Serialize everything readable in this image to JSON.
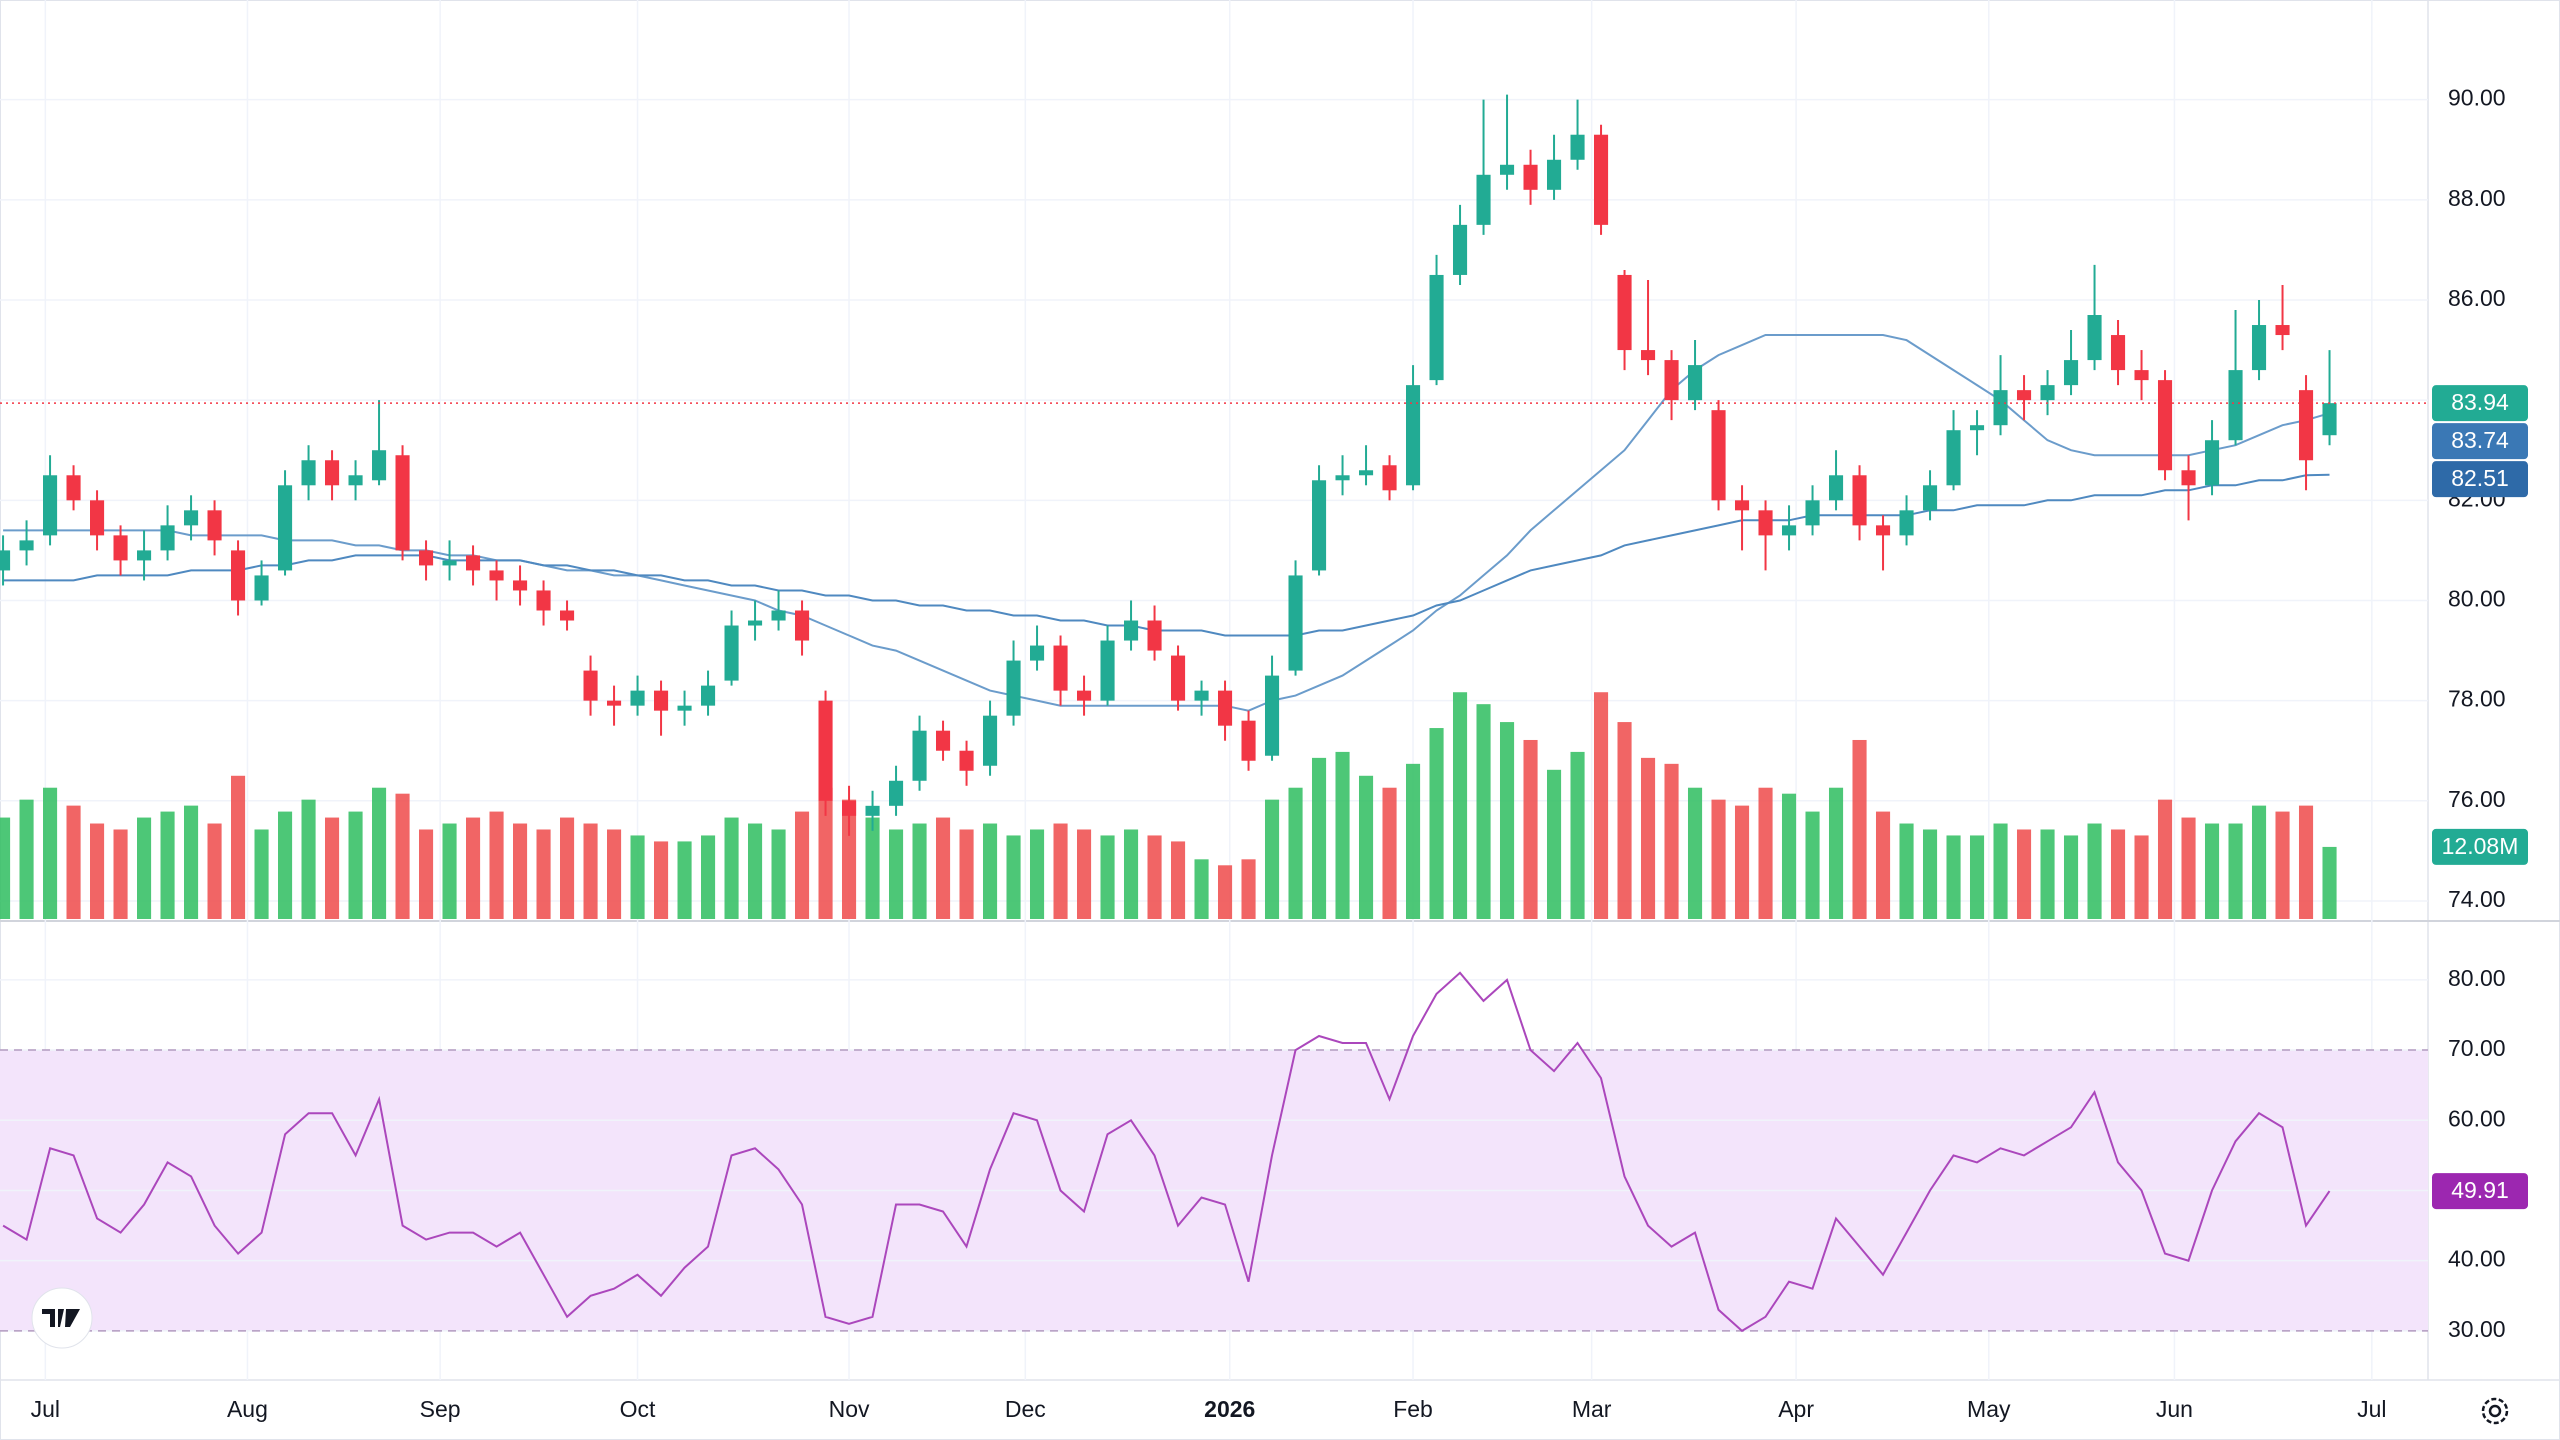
{
  "chart_data": [
    {
      "type": "candlestick",
      "up_color": "#22ab94",
      "down_color": "#f23645",
      "ylim": [
        73.64,
        91.99
      ],
      "yticks": [
        {
          "value": 74,
          "label": "74.00"
        },
        {
          "value": 76,
          "label": "76.00"
        },
        {
          "value": 78,
          "label": "78.00"
        },
        {
          "value": 80,
          "label": "80.00"
        },
        {
          "value": 82,
          "label": "82.00"
        },
        {
          "value": 84,
          "label": "84.00"
        },
        {
          "value": 86,
          "label": "86.00"
        },
        {
          "value": 88,
          "label": "88.00"
        },
        {
          "value": 90,
          "label": "90.00"
        }
      ],
      "grid": true,
      "candles": [
        [
          80.6,
          81.3,
          80.3,
          81.0
        ],
        [
          81.0,
          81.6,
          80.7,
          81.2
        ],
        [
          81.3,
          82.9,
          81.1,
          82.5
        ],
        [
          82.5,
          82.7,
          81.8,
          82.0
        ],
        [
          82.0,
          82.2,
          81.0,
          81.3
        ],
        [
          81.3,
          81.5,
          80.5,
          80.8
        ],
        [
          80.8,
          81.4,
          80.4,
          81.0
        ],
        [
          81.0,
          81.9,
          80.8,
          81.5
        ],
        [
          81.5,
          82.1,
          81.2,
          81.8
        ],
        [
          81.8,
          82.0,
          80.9,
          81.2
        ],
        [
          81.0,
          81.2,
          79.7,
          80.0
        ],
        [
          80.0,
          80.8,
          79.9,
          80.5
        ],
        [
          80.6,
          82.6,
          80.5,
          82.3
        ],
        [
          82.3,
          83.1,
          82.0,
          82.8
        ],
        [
          82.8,
          83.0,
          82.0,
          82.3
        ],
        [
          82.3,
          82.8,
          82.0,
          82.5
        ],
        [
          82.4,
          84.0,
          82.3,
          83.0
        ],
        [
          82.9,
          83.1,
          80.8,
          81.0
        ],
        [
          81.0,
          81.2,
          80.4,
          80.7
        ],
        [
          80.7,
          81.2,
          80.4,
          80.8
        ],
        [
          80.9,
          81.1,
          80.3,
          80.6
        ],
        [
          80.6,
          80.8,
          80.0,
          80.4
        ],
        [
          80.4,
          80.7,
          79.9,
          80.2
        ],
        [
          80.2,
          80.4,
          79.5,
          79.8
        ],
        [
          79.8,
          80.0,
          79.4,
          79.6
        ],
        [
          78.6,
          78.9,
          77.7,
          78.0
        ],
        [
          78.0,
          78.3,
          77.5,
          77.9
        ],
        [
          77.9,
          78.5,
          77.7,
          78.2
        ],
        [
          78.2,
          78.4,
          77.3,
          77.8
        ],
        [
          77.8,
          78.2,
          77.5,
          77.9
        ],
        [
          77.9,
          78.6,
          77.7,
          78.3
        ],
        [
          78.4,
          79.8,
          78.3,
          79.5
        ],
        [
          79.5,
          80.0,
          79.2,
          79.6
        ],
        [
          79.6,
          80.2,
          79.4,
          79.8
        ],
        [
          79.8,
          80.0,
          78.9,
          79.2
        ],
        [
          78.0,
          78.2,
          75.7,
          76.0
        ],
        [
          76.0,
          76.3,
          75.3,
          75.7
        ],
        [
          75.7,
          76.2,
          75.4,
          75.9
        ],
        [
          75.9,
          76.7,
          75.7,
          76.4
        ],
        [
          76.4,
          77.7,
          76.2,
          77.4
        ],
        [
          77.4,
          77.6,
          76.8,
          77.0
        ],
        [
          77.0,
          77.2,
          76.3,
          76.6
        ],
        [
          76.7,
          78.0,
          76.5,
          77.7
        ],
        [
          77.7,
          79.2,
          77.5,
          78.8
        ],
        [
          78.8,
          79.5,
          78.6,
          79.1
        ],
        [
          79.1,
          79.3,
          77.9,
          78.2
        ],
        [
          78.2,
          78.5,
          77.7,
          78.0
        ],
        [
          78.0,
          79.5,
          77.9,
          79.2
        ],
        [
          79.2,
          80.0,
          79.0,
          79.6
        ],
        [
          79.6,
          79.9,
          78.8,
          79.0
        ],
        [
          78.9,
          79.1,
          77.8,
          78.0
        ],
        [
          78.0,
          78.4,
          77.7,
          78.2
        ],
        [
          78.2,
          78.4,
          77.2,
          77.5
        ],
        [
          77.6,
          77.8,
          76.6,
          76.8
        ],
        [
          76.9,
          78.9,
          76.8,
          78.5
        ],
        [
          78.6,
          80.8,
          78.5,
          80.5
        ],
        [
          80.6,
          82.7,
          80.5,
          82.4
        ],
        [
          82.4,
          82.9,
          82.1,
          82.5
        ],
        [
          82.5,
          83.1,
          82.3,
          82.6
        ],
        [
          82.7,
          82.9,
          82.0,
          82.2
        ],
        [
          82.3,
          84.7,
          82.2,
          84.3
        ],
        [
          84.4,
          86.9,
          84.3,
          86.5
        ],
        [
          86.5,
          87.9,
          86.3,
          87.5
        ],
        [
          87.5,
          90.0,
          87.3,
          88.5
        ],
        [
          88.5,
          90.1,
          88.2,
          88.7
        ],
        [
          88.7,
          89.0,
          87.9,
          88.2
        ],
        [
          88.2,
          89.3,
          88.0,
          88.8
        ],
        [
          88.8,
          90.0,
          88.6,
          89.3
        ],
        [
          89.3,
          89.5,
          87.3,
          87.5
        ],
        [
          86.5,
          86.6,
          84.6,
          85.0
        ],
        [
          85.0,
          86.4,
          84.5,
          84.8
        ],
        [
          84.8,
          85.0,
          83.6,
          84.0
        ],
        [
          84.0,
          85.2,
          83.8,
          84.7
        ],
        [
          83.8,
          84.0,
          81.8,
          82.0
        ],
        [
          82.0,
          82.3,
          81.0,
          81.8
        ],
        [
          81.8,
          82.0,
          80.6,
          81.3
        ],
        [
          81.3,
          81.9,
          81.0,
          81.5
        ],
        [
          81.5,
          82.3,
          81.3,
          82.0
        ],
        [
          82.0,
          83.0,
          81.8,
          82.5
        ],
        [
          82.5,
          82.7,
          81.2,
          81.5
        ],
        [
          81.5,
          81.7,
          80.6,
          81.3
        ],
        [
          81.3,
          82.1,
          81.1,
          81.8
        ],
        [
          81.8,
          82.6,
          81.6,
          82.3
        ],
        [
          82.3,
          83.8,
          82.2,
          83.4
        ],
        [
          83.4,
          83.8,
          82.9,
          83.5
        ],
        [
          83.5,
          84.9,
          83.3,
          84.2
        ],
        [
          84.2,
          84.5,
          83.6,
          84.0
        ],
        [
          84.0,
          84.6,
          83.7,
          84.3
        ],
        [
          84.3,
          85.4,
          84.1,
          84.8
        ],
        [
          84.8,
          86.7,
          84.6,
          85.7
        ],
        [
          85.3,
          85.6,
          84.3,
          84.6
        ],
        [
          84.6,
          85.0,
          84.0,
          84.4
        ],
        [
          84.4,
          84.6,
          82.4,
          82.6
        ],
        [
          82.6,
          82.9,
          81.6,
          82.3
        ],
        [
          82.3,
          83.6,
          82.1,
          83.2
        ],
        [
          83.2,
          85.8,
          83.1,
          84.6
        ],
        [
          84.6,
          86.0,
          84.4,
          85.5
        ],
        [
          85.5,
          86.3,
          85.0,
          85.3
        ],
        [
          84.2,
          84.5,
          82.2,
          82.8
        ],
        [
          83.3,
          85.0,
          83.1,
          83.94
        ]
      ],
      "moving_averages": [
        {
          "color": "#6b9ccb",
          "label_color": "#3a78b5",
          "values": [
            81.4,
            81.4,
            81.4,
            81.4,
            81.4,
            81.4,
            81.4,
            81.4,
            81.3,
            81.3,
            81.3,
            81.3,
            81.2,
            81.2,
            81.2,
            81.1,
            81.1,
            81.0,
            81.0,
            80.9,
            80.9,
            80.8,
            80.8,
            80.7,
            80.6,
            80.6,
            80.5,
            80.5,
            80.4,
            80.3,
            80.2,
            80.1,
            80.0,
            79.8,
            79.7,
            79.5,
            79.3,
            79.1,
            79.0,
            78.8,
            78.6,
            78.4,
            78.2,
            78.1,
            78.0,
            77.9,
            77.9,
            77.9,
            77.9,
            77.9,
            77.9,
            77.9,
            77.9,
            77.8,
            78.0,
            78.1,
            78.3,
            78.5,
            78.8,
            79.1,
            79.4,
            79.8,
            80.1,
            80.5,
            80.9,
            81.4,
            81.8,
            82.2,
            82.6,
            83.0,
            83.6,
            84.2,
            84.6,
            84.9,
            85.1,
            85.3,
            85.3,
            85.3,
            85.3,
            85.3,
            85.3,
            85.2,
            84.9,
            84.6,
            84.3,
            84.0,
            83.6,
            83.2,
            83.0,
            82.9,
            82.9,
            82.9,
            82.9,
            82.9,
            83.0,
            83.1,
            83.3,
            83.5,
            83.6,
            83.74
          ]
        },
        {
          "color": "#4f89c0",
          "label_color": "#2e6aa8",
          "values": [
            80.4,
            80.4,
            80.4,
            80.4,
            80.5,
            80.5,
            80.5,
            80.5,
            80.6,
            80.6,
            80.6,
            80.7,
            80.7,
            80.8,
            80.8,
            80.9,
            80.9,
            80.9,
            80.9,
            80.8,
            80.8,
            80.8,
            80.8,
            80.7,
            80.7,
            80.6,
            80.6,
            80.5,
            80.5,
            80.4,
            80.4,
            80.3,
            80.3,
            80.2,
            80.2,
            80.1,
            80.1,
            80.0,
            80.0,
            79.9,
            79.9,
            79.8,
            79.8,
            79.7,
            79.7,
            79.6,
            79.6,
            79.5,
            79.5,
            79.4,
            79.4,
            79.4,
            79.3,
            79.3,
            79.3,
            79.3,
            79.4,
            79.4,
            79.5,
            79.6,
            79.7,
            79.9,
            80.0,
            80.2,
            80.4,
            80.6,
            80.7,
            80.8,
            80.9,
            81.1,
            81.2,
            81.3,
            81.4,
            81.5,
            81.6,
            81.6,
            81.6,
            81.7,
            81.7,
            81.7,
            81.7,
            81.7,
            81.8,
            81.8,
            81.9,
            81.9,
            81.9,
            82.0,
            82.0,
            82.1,
            82.1,
            82.1,
            82.2,
            82.2,
            82.3,
            82.3,
            82.4,
            82.4,
            82.5,
            82.51
          ]
        }
      ],
      "volume": {
        "up_color": "#2ebd5f",
        "down_color": "#ef4a4a",
        "ylim": [
          0,
          154
        ],
        "values": [
          17,
          20,
          22,
          19,
          16,
          15,
          17,
          18,
          19,
          16,
          24,
          15,
          18,
          20,
          17,
          18,
          22,
          21,
          15,
          16,
          17,
          18,
          16,
          15,
          17,
          16,
          15,
          14,
          13,
          13,
          14,
          17,
          16,
          15,
          18,
          22,
          20,
          17,
          15,
          16,
          17,
          15,
          16,
          14,
          15,
          16,
          15,
          14,
          15,
          14,
          13,
          10,
          9,
          10,
          20,
          22,
          27,
          28,
          24,
          22,
          26,
          32,
          38,
          36,
          33,
          30,
          25,
          28,
          38,
          33,
          27,
          26,
          22,
          20,
          19,
          22,
          21,
          18,
          22,
          30,
          18,
          16,
          15,
          14,
          14,
          16,
          15,
          15,
          14,
          16,
          15,
          14,
          20,
          17,
          16,
          16,
          19,
          18,
          19,
          12.08
        ],
        "value_labels": [
          null,
          null,
          null,
          null,
          null,
          null,
          null,
          null,
          null,
          null,
          null,
          null,
          null,
          null,
          null,
          null,
          null,
          null,
          null,
          null,
          null,
          null,
          null,
          null,
          null,
          null,
          null,
          null,
          null,
          null,
          null,
          null,
          null,
          null,
          null,
          null,
          null,
          null,
          null,
          null,
          null,
          null,
          null,
          null,
          null,
          null,
          null,
          null,
          null,
          null,
          null,
          null,
          null,
          null,
          null,
          null,
          null,
          null,
          null,
          null,
          null,
          null,
          null,
          null,
          null,
          null,
          null,
          null,
          null,
          null,
          null,
          null,
          null,
          null,
          null,
          null,
          null,
          null,
          null,
          null,
          null,
          null,
          null,
          null,
          null,
          null,
          null,
          null,
          null,
          null,
          null,
          null,
          null,
          null,
          null,
          null,
          null,
          null,
          null,
          "12.08M"
        ]
      }
    },
    {
      "type": "line",
      "color": "#ab47bc",
      "label_color": "#9c27b0",
      "band": [
        30,
        70
      ],
      "band_color": "#f3e4fb",
      "ylim": [
        23.0,
        88.1
      ],
      "yticks": [
        {
          "value": 30,
          "label": "30.00"
        },
        {
          "value": 40,
          "label": "40.00"
        },
        {
          "value": 50,
          "label": "50.00"
        },
        {
          "value": 60,
          "label": "60.00"
        },
        {
          "value": 70,
          "label": "70.00"
        },
        {
          "value": 80,
          "label": "80.00"
        }
      ],
      "xlim": [
        -0.13,
        103.19
      ],
      "xticks": [
        {
          "value": 1.8,
          "label": "Jul"
        },
        {
          "value": 10.4,
          "label": "Aug"
        },
        {
          "value": 18.6,
          "label": "Sep"
        },
        {
          "value": 27,
          "label": "Oct"
        },
        {
          "value": 36,
          "label": "Nov"
        },
        {
          "value": 43.5,
          "label": "Dec"
        },
        {
          "value": 52.2,
          "label": "2026"
        },
        {
          "value": 60,
          "label": "Feb"
        },
        {
          "value": 67.6,
          "label": "Mar"
        },
        {
          "value": 76.3,
          "label": "Apr"
        },
        {
          "value": 84.5,
          "label": "May"
        },
        {
          "value": 92.4,
          "label": "Jun"
        },
        {
          "value": 100.8,
          "label": "Jul"
        }
      ],
      "values": [
        45,
        43,
        56,
        55,
        46,
        44,
        48,
        54,
        52,
        45,
        41,
        44,
        58,
        61,
        61,
        55,
        63,
        45,
        43,
        44,
        44,
        42,
        44,
        38,
        32,
        35,
        36,
        38,
        35,
        39,
        42,
        55,
        56,
        53,
        48,
        32,
        31,
        32,
        48,
        48,
        47,
        42,
        53,
        61,
        60,
        50,
        47,
        58,
        60,
        55,
        45,
        49,
        48,
        37,
        55,
        70,
        72,
        71,
        71,
        63,
        72,
        78,
        81,
        77,
        80,
        70,
        67,
        71,
        66,
        52,
        45,
        42,
        44,
        33,
        30,
        32,
        37,
        36,
        46,
        42,
        38,
        44,
        50,
        55,
        54,
        56,
        55,
        57,
        59,
        64,
        54,
        50,
        41,
        40,
        50,
        57,
        61,
        59,
        45,
        49.91
      ]
    }
  ]
}
